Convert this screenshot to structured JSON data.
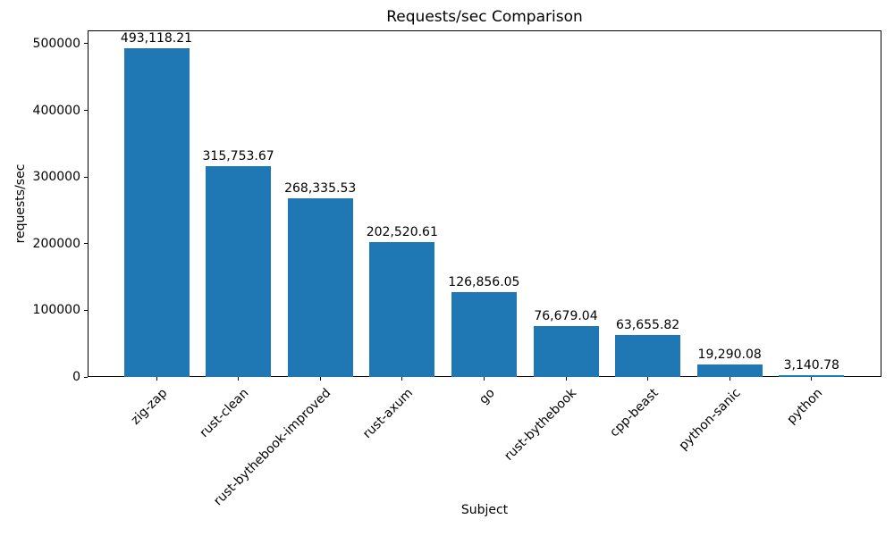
{
  "chart_data": {
    "type": "bar",
    "title": "Requests/sec Comparison",
    "xlabel": "Subject",
    "ylabel": "requests/sec",
    "categories": [
      "zig-zap",
      "rust-clean",
      "rust-bythebook-improved",
      "rust-axum",
      "go",
      "rust-bythebook",
      "cpp-beast",
      "python-sanic",
      "python"
    ],
    "values": [
      493118.21,
      315753.67,
      268335.53,
      202520.61,
      126856.05,
      76679.04,
      63655.82,
      19290.08,
      3140.78
    ],
    "value_labels": [
      "493,118.21",
      "315,753.67",
      "268,335.53",
      "202,520.61",
      "126,856.05",
      "76,679.04",
      "63,655.82",
      "19,290.08",
      "3,140.78"
    ],
    "yticks": [
      0,
      100000,
      200000,
      300000,
      400000,
      500000
    ],
    "ytick_labels": [
      "0",
      "100000",
      "200000",
      "300000",
      "400000",
      "500000"
    ],
    "ylim": [
      0,
      520000
    ],
    "bar_color": "#1f77b4",
    "grid": false,
    "legend": null
  }
}
